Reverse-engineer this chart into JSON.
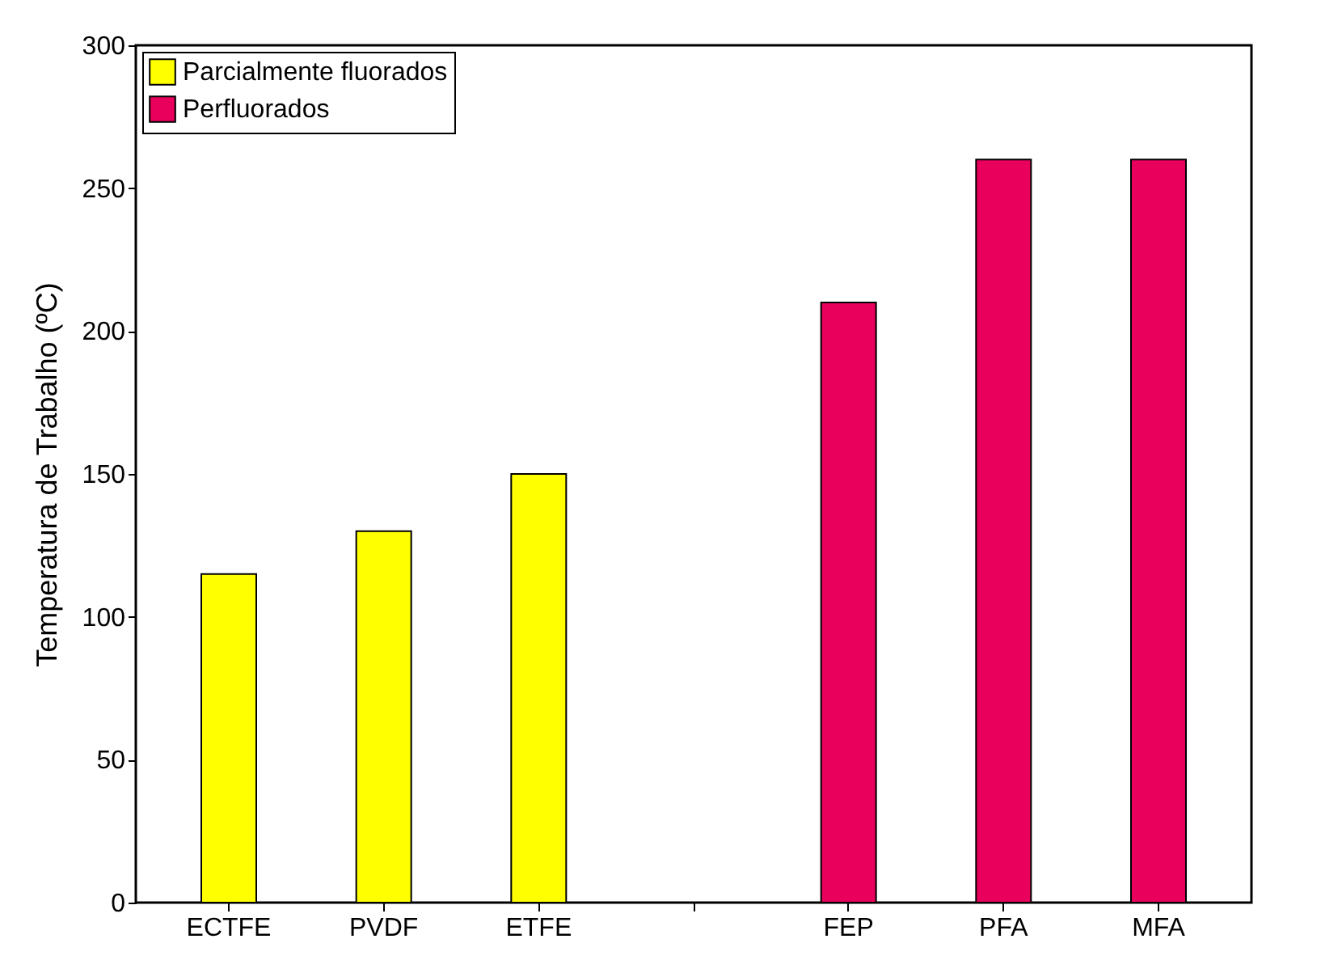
{
  "chart_data": {
    "type": "bar",
    "ylabel": "Temperatura de Trabalho (ºC)",
    "categories": [
      "ECTFE",
      "PVDF",
      "ETFE",
      null,
      "FEP",
      "PFA",
      "MFA"
    ],
    "series": [
      {
        "name": "Parcialmente fluorados",
        "color": "#ffff00",
        "values": [
          115,
          130,
          150,
          null,
          null,
          null,
          null
        ]
      },
      {
        "name": "Perfluorados",
        "color": "#e8005c",
        "values": [
          null,
          null,
          null,
          null,
          210,
          260,
          260
        ]
      }
    ],
    "ylim": [
      0,
      300
    ],
    "yticks": [
      0,
      50,
      100,
      150,
      200,
      250,
      300
    ],
    "legend": "top left"
  }
}
